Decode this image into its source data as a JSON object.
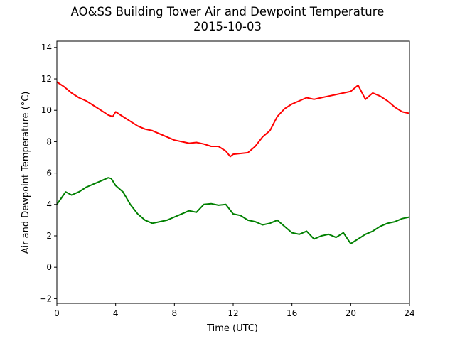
{
  "header": {
    "title": "AO&SS Building Tower Air and Dewpoint Temperature",
    "subtitle": "2015-10-03"
  },
  "colors": {
    "air": "#ff0000",
    "dewpoint": "#008000",
    "axes": "#000000",
    "background": "#ffffff"
  },
  "chart_data": {
    "type": "line",
    "title": "AO&SS Building Tower Air and Dewpoint Temperature",
    "subtitle": "2015-10-03",
    "xlabel": "Time (UTC)",
    "ylabel": "Air and Dewpoint Temperature (°C)",
    "xlim": [
      0,
      24
    ],
    "ylim": [
      -2.3,
      14.4
    ],
    "xticks": [
      0,
      4,
      8,
      12,
      16,
      20,
      24
    ],
    "yticks": [
      -2,
      0,
      2,
      4,
      6,
      8,
      10,
      12,
      14
    ],
    "grid": false,
    "legend": "none",
    "series": [
      {
        "color": "#ff0000",
        "x": [
          0,
          0.5,
          1,
          1.5,
          2,
          2.5,
          3,
          3.5,
          3.8,
          4,
          4.5,
          5,
          5.5,
          6,
          6.5,
          7,
          7.5,
          8,
          8.5,
          9,
          9.5,
          10,
          10.5,
          11,
          11.5,
          11.8,
          12,
          12.5,
          13,
          13.5,
          14,
          14.5,
          15,
          15.5,
          16,
          16.5,
          17,
          17.5,
          18,
          18.5,
          19,
          19.5,
          20,
          20.5,
          21,
          21.5,
          22,
          22.5,
          23,
          23.5,
          24
        ],
        "y": [
          11.8,
          11.5,
          11.1,
          10.8,
          10.6,
          10.3,
          10.0,
          9.7,
          9.6,
          9.9,
          9.6,
          9.3,
          9.0,
          8.8,
          8.7,
          8.5,
          8.3,
          8.1,
          8.0,
          7.9,
          7.95,
          7.85,
          7.7,
          7.7,
          7.4,
          7.05,
          7.2,
          7.25,
          7.3,
          7.7,
          8.3,
          8.7,
          9.6,
          10.1,
          10.4,
          10.6,
          10.8,
          10.7,
          10.8,
          10.9,
          11.0,
          11.1,
          11.2,
          11.6,
          10.7,
          11.1,
          10.9,
          10.6,
          10.2,
          9.9,
          9.8
        ]
      },
      {
        "color": "#008000",
        "x": [
          0,
          0.3,
          0.6,
          1,
          1.5,
          2,
          2.5,
          3,
          3.5,
          3.7,
          4,
          4.5,
          5,
          5.5,
          6,
          6.5,
          7,
          7.5,
          8,
          8.5,
          9,
          9.5,
          10,
          10.5,
          11,
          11.5,
          12,
          12.5,
          13,
          13.5,
          14,
          14.5,
          15,
          15.5,
          16,
          16.5,
          17,
          17.5,
          18,
          18.5,
          19,
          19.5,
          20,
          20.5,
          21,
          21.5,
          22,
          22.5,
          23,
          23.5,
          24
        ],
        "y": [
          4.0,
          4.4,
          4.8,
          4.6,
          4.8,
          5.1,
          5.3,
          5.5,
          5.7,
          5.65,
          5.2,
          4.8,
          4.0,
          3.4,
          3.0,
          2.8,
          2.9,
          3.0,
          3.2,
          3.4,
          3.6,
          3.5,
          4.0,
          4.05,
          3.95,
          4.0,
          3.4,
          3.3,
          3.0,
          2.9,
          2.7,
          2.8,
          3.0,
          2.6,
          2.2,
          2.1,
          2.3,
          1.8,
          2.0,
          2.1,
          1.9,
          2.2,
          1.5,
          1.8,
          2.1,
          2.3,
          2.6,
          2.8,
          2.9,
          3.1,
          3.2
        ]
      }
    ]
  }
}
